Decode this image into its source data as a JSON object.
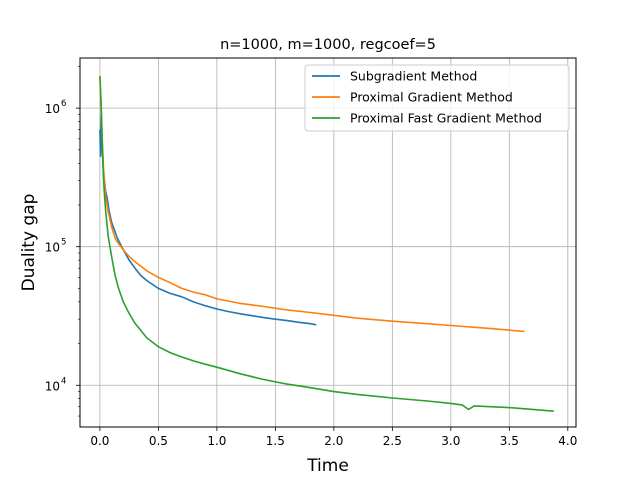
{
  "chart_data": {
    "type": "line",
    "title": "n=1000, m=1000, regcoef=5",
    "xlabel": "Time",
    "ylabel": "Duality gap",
    "xlim": [
      -0.17,
      4.07
    ],
    "ylim": [
      5000,
      2300000
    ],
    "yscale": "log",
    "grid": true,
    "legend_position": "top-right",
    "x_ticks": [
      0,
      0.5,
      1,
      1.5,
      2,
      2.5,
      3,
      3.5,
      4
    ],
    "x_tick_labels": [
      "0.0",
      "0.5",
      "1.0",
      "1.5",
      "2.0",
      "2.5",
      "3.0",
      "3.5",
      "4.0"
    ],
    "y_ticks": [
      10000,
      100000,
      1000000
    ],
    "y_tick_labels": [
      "10",
      "10",
      "10"
    ],
    "y_tick_exponents": [
      "4",
      "5",
      "6"
    ],
    "series": [
      {
        "name": "Subgradient Method",
        "color": "#1f77b4",
        "x": [
          0,
          0.005,
          0.01,
          0.02,
          0.03,
          0.04,
          0.05,
          0.06,
          0.08,
          0.1,
          0.12,
          0.15,
          0.2,
          0.25,
          0.3,
          0.35,
          0.4,
          0.5,
          0.6,
          0.7,
          0.8,
          0.9,
          1.0,
          1.1,
          1.2,
          1.3,
          1.4,
          1.5,
          1.6,
          1.7,
          1.8,
          1.85
        ],
        "y": [
          700000,
          450000,
          900000,
          500000,
          350000,
          290000,
          250000,
          230000,
          180000,
          150000,
          135000,
          115000,
          95000,
          80000,
          70000,
          62000,
          57000,
          50000,
          46000,
          43500,
          40000,
          37500,
          35500,
          34000,
          32800,
          31800,
          30800,
          30000,
          29300,
          28500,
          27800,
          27300
        ]
      },
      {
        "name": "Proximal Gradient Method",
        "color": "#ff7f0e",
        "x": [
          0,
          0.01,
          0.02,
          0.03,
          0.04,
          0.05,
          0.07,
          0.1,
          0.13,
          0.16,
          0.2,
          0.25,
          0.3,
          0.4,
          0.5,
          0.6,
          0.7,
          0.8,
          0.9,
          1.0,
          1.2,
          1.4,
          1.6,
          1.8,
          2.0,
          2.2,
          2.5,
          2.8,
          3.0,
          3.3,
          3.63
        ],
        "y": [
          1700000,
          1000000,
          600000,
          380000,
          290000,
          230000,
          180000,
          140000,
          115000,
          105000,
          95000,
          85000,
          78000,
          67000,
          60000,
          55000,
          50000,
          47000,
          45000,
          42000,
          39000,
          37000,
          35000,
          33500,
          32000,
          30500,
          29000,
          27800,
          27000,
          25800,
          24500
        ]
      },
      {
        "name": "Proximal Fast Gradient Method",
        "color": "#2ca02c",
        "x": [
          0,
          0.01,
          0.02,
          0.03,
          0.04,
          0.05,
          0.07,
          0.1,
          0.13,
          0.16,
          0.2,
          0.25,
          0.3,
          0.4,
          0.5,
          0.6,
          0.7,
          0.8,
          0.9,
          1.0,
          1.2,
          1.4,
          1.6,
          1.8,
          2.0,
          2.2,
          2.5,
          2.8,
          3.0,
          3.1,
          3.15,
          3.2,
          3.5,
          3.7,
          3.88
        ],
        "y": [
          1700000,
          1100000,
          600000,
          320000,
          230000,
          180000,
          120000,
          85000,
          62000,
          50000,
          40000,
          33000,
          28000,
          22000,
          19000,
          17200,
          16000,
          15000,
          14200,
          13500,
          12100,
          11000,
          10200,
          9600,
          9000,
          8600,
          8100,
          7700,
          7400,
          7200,
          6700,
          7100,
          6900,
          6700,
          6500
        ]
      }
    ]
  }
}
